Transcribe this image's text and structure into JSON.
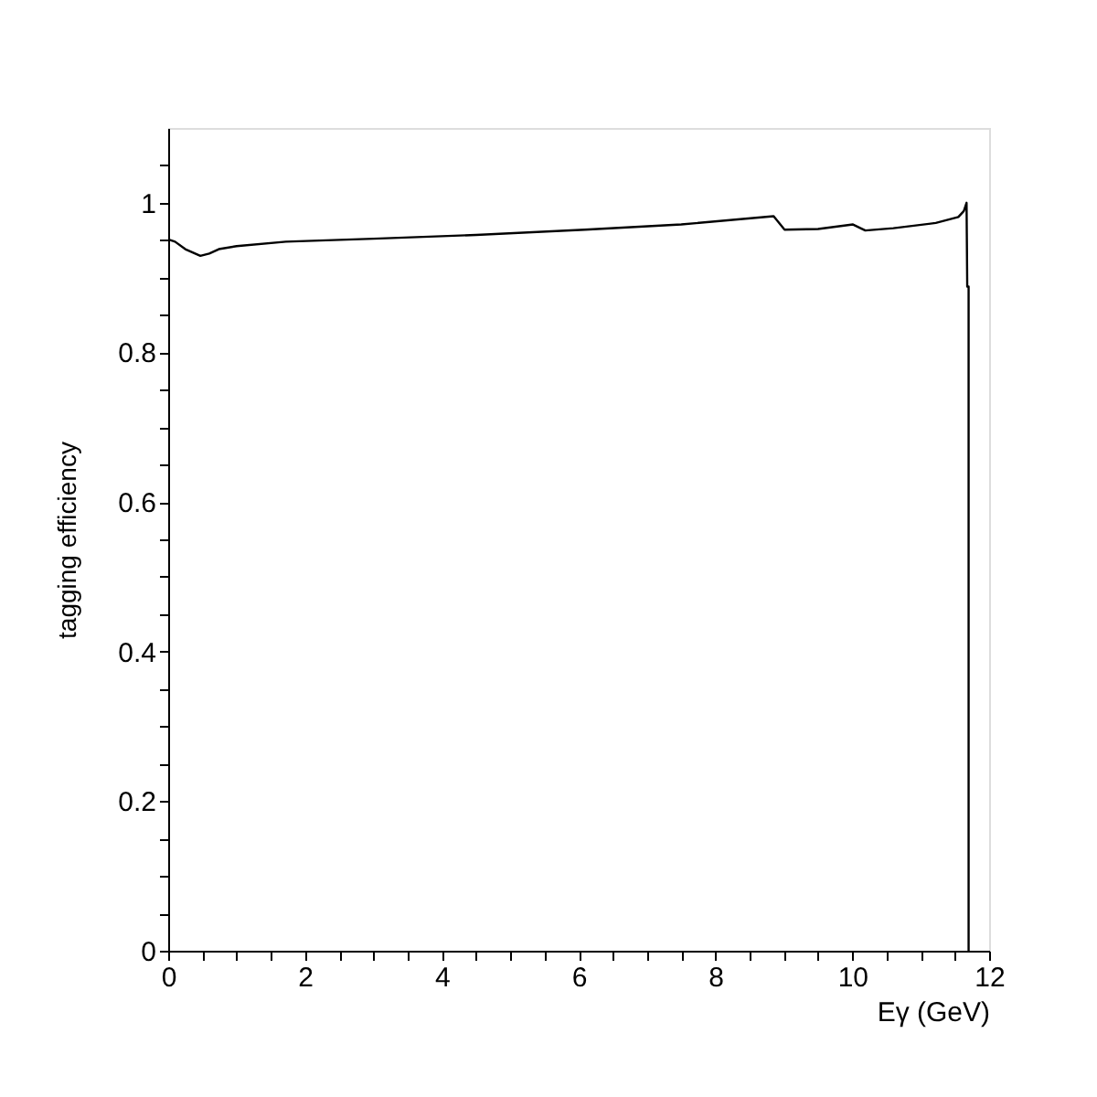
{
  "chart_data": {
    "type": "line",
    "xlabel": "Eγ (GeV)",
    "ylabel": "tagging efficiency",
    "x": [
      0.0,
      0.1,
      0.25,
      0.47,
      0.6,
      0.74,
      1.0,
      1.72,
      3.0,
      4.5,
      6.09,
      7.5,
      8.85,
      9.01,
      9.5,
      10.01,
      10.19,
      10.6,
      11.22,
      11.55,
      11.63,
      11.67,
      11.68,
      11.7,
      11.7
    ],
    "series": [
      {
        "color": "#000000",
        "values": [
          0.951,
          0.948,
          0.938,
          0.929,
          0.932,
          0.938,
          0.942,
          0.948,
          0.952,
          0.957,
          0.964,
          0.971,
          0.982,
          0.964,
          0.965,
          0.971,
          0.963,
          0.966,
          0.973,
          0.981,
          0.989,
          1.0,
          0.888,
          0.888,
          0.0
        ]
      }
    ],
    "xlim": [
      0,
      12
    ],
    "ylim": [
      0,
      1.1
    ],
    "xticks": [
      0,
      {
        "value": 0.5,
        "label": null
      },
      {
        "value": 1,
        "label": null
      },
      {
        "value": 1.5,
        "label": null
      },
      2,
      {
        "value": 2.5,
        "label": null
      },
      {
        "value": 3,
        "label": null
      },
      {
        "value": 3.5,
        "label": null
      },
      4,
      {
        "value": 4.5,
        "label": null
      },
      {
        "value": 5,
        "label": null
      },
      {
        "value": 5.5,
        "label": null
      },
      6,
      {
        "value": 6.5,
        "label": null
      },
      {
        "value": 7,
        "label": null
      },
      {
        "value": 7.5,
        "label": null
      },
      8,
      {
        "value": 8.5,
        "label": null
      },
      {
        "value": 9,
        "label": null
      },
      {
        "value": 9.5,
        "label": null
      },
      10,
      {
        "value": 10.5,
        "label": null
      },
      {
        "value": 11,
        "label": null
      },
      {
        "value": 11.5,
        "label": null
      },
      12
    ],
    "yticks": [
      0,
      {
        "value": 0.05,
        "label": null
      },
      {
        "value": 0.1,
        "label": null
      },
      {
        "value": 0.15,
        "label": null
      },
      0.2,
      {
        "value": 0.25,
        "label": null
      },
      {
        "value": 0.3,
        "label": null
      },
      {
        "value": 0.35,
        "label": null
      },
      0.4,
      {
        "value": 0.45,
        "label": null
      },
      {
        "value": 0.5,
        "label": null
      },
      {
        "value": 0.55,
        "label": null
      },
      0.6,
      {
        "value": 0.65,
        "label": null
      },
      {
        "value": 0.7,
        "label": null
      },
      {
        "value": 0.75,
        "label": null
      },
      0.8,
      {
        "value": 0.85,
        "label": null
      },
      {
        "value": 0.9,
        "label": null
      },
      {
        "value": 0.95,
        "label": null
      },
      1,
      {
        "value": 1.05,
        "label": null
      }
    ],
    "grid": false,
    "marker": "none",
    "line_style": "solid"
  }
}
